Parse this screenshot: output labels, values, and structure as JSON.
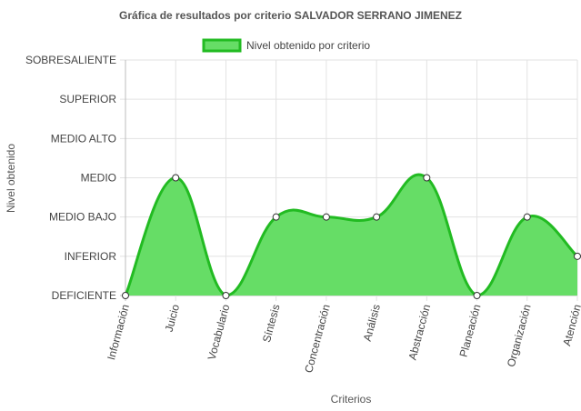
{
  "chart_data": {
    "type": "area",
    "title": "Gráfica de resultados por criterio SALVADOR SERRANO JIMENEZ",
    "xlabel": "Criterios",
    "ylabel": "Nivel obtenido",
    "categories": [
      "Información",
      "Juicio",
      "Vocabulario",
      "Síntesis",
      "Concentración",
      "Análisis",
      "Abstracción",
      "Planeación",
      "Organización",
      "Atención"
    ],
    "y_levels": [
      "DEFICIENTE",
      "INFERIOR",
      "MEDIO BAJO",
      "MEDIO",
      "MEDIO ALTO",
      "SUPERIOR",
      "SOBRESALIENTE"
    ],
    "series": [
      {
        "name": "Nivel obtenido por criterio",
        "values": [
          0,
          3,
          0,
          2,
          2,
          2,
          3,
          0,
          2,
          1
        ],
        "line_color": "#22bb22",
        "fill_color": "#66dd66"
      }
    ],
    "ylim": [
      0,
      6
    ],
    "grid": true,
    "legend_position": "top"
  }
}
